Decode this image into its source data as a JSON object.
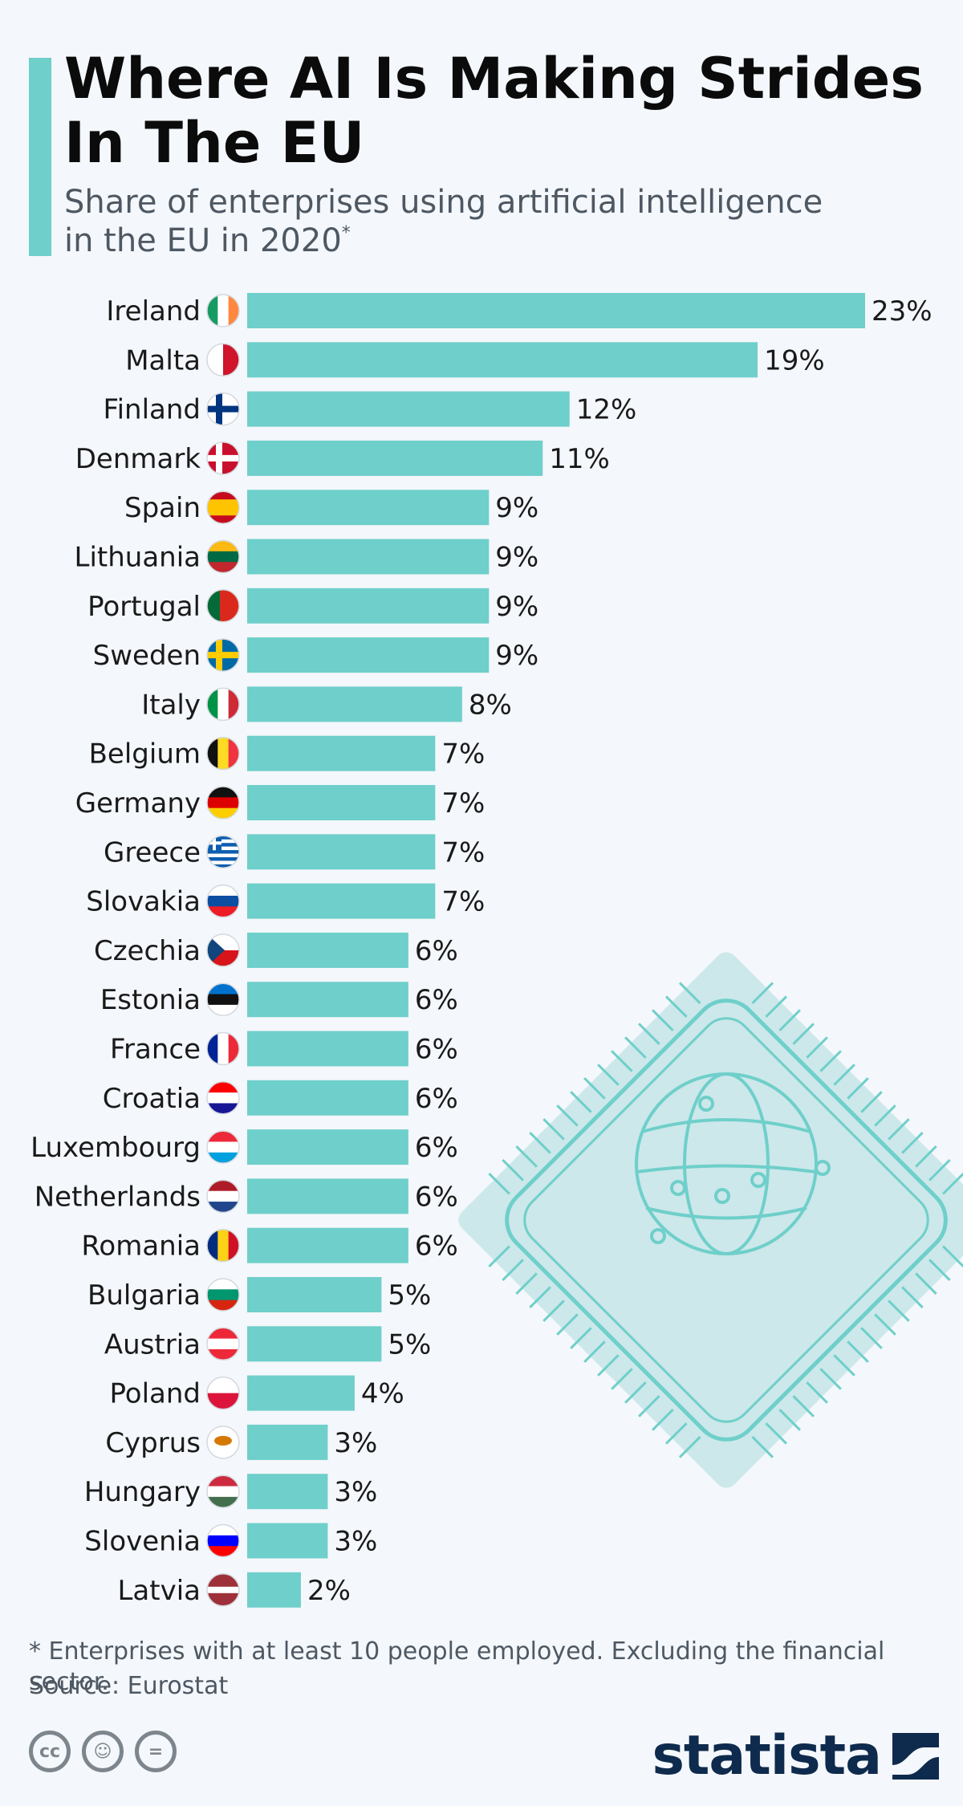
{
  "header": {
    "title": "Where AI Is Making Strides In The EU",
    "subtitle": "Share of enterprises using artificial intelligence\nin the EU in 2020",
    "subtitle_marker": "*"
  },
  "chart_data": {
    "type": "bar",
    "orientation": "horizontal",
    "title": "Where AI Is Making Strides In The EU",
    "subtitle": "Share of enterprises using artificial intelligence in the EU in 2020*",
    "value_suffix": "%",
    "xlim": [
      0,
      23
    ],
    "grid": false,
    "bar_color": "#6fcfca",
    "categories": [
      "Ireland",
      "Malta",
      "Finland",
      "Denmark",
      "Spain",
      "Lithuania",
      "Portugal",
      "Sweden",
      "Italy",
      "Belgium",
      "Germany",
      "Greece",
      "Slovakia",
      "Czechia",
      "Estonia",
      "France",
      "Croatia",
      "Luxembourg",
      "Netherlands",
      "Romania",
      "Bulgaria",
      "Austria",
      "Poland",
      "Cyprus",
      "Hungary",
      "Slovenia",
      "Latvia"
    ],
    "values": [
      23,
      19,
      12,
      11,
      9,
      9,
      9,
      9,
      8,
      7,
      7,
      7,
      7,
      6,
      6,
      6,
      6,
      6,
      6,
      6,
      5,
      5,
      4,
      3,
      3,
      3,
      2
    ],
    "flags": [
      {
        "type": "v",
        "colors": [
          "#169b62",
          "#ffffff",
          "#ff883e"
        ]
      },
      {
        "type": "v",
        "colors": [
          "#ffffff",
          "#cf142b"
        ]
      },
      {
        "type": "nordic",
        "colors": [
          "#ffffff",
          "#003580"
        ]
      },
      {
        "type": "nordic",
        "colors": [
          "#c8102e",
          "#ffffff"
        ]
      },
      {
        "type": "h3",
        "colors": [
          "#c60b1e",
          "#ffc400",
          "#c60b1e"
        ],
        "weights": [
          1,
          2,
          1
        ]
      },
      {
        "type": "h3",
        "colors": [
          "#fdb913",
          "#006a44",
          "#c1272d"
        ]
      },
      {
        "type": "v",
        "colors": [
          "#046a38",
          "#da291c"
        ],
        "weights": [
          2,
          3
        ]
      },
      {
        "type": "nordic",
        "colors": [
          "#006aa7",
          "#fecc00"
        ]
      },
      {
        "type": "v",
        "colors": [
          "#009246",
          "#ffffff",
          "#ce2b37"
        ]
      },
      {
        "type": "v",
        "colors": [
          "#111111",
          "#fdda24",
          "#ef3340"
        ]
      },
      {
        "type": "h3",
        "colors": [
          "#111111",
          "#dd0000",
          "#ffce00"
        ]
      },
      {
        "type": "stripes",
        "colors": [
          "#0d5eaf",
          "#ffffff"
        ]
      },
      {
        "type": "h3",
        "colors": [
          "#ffffff",
          "#0b4ea2",
          "#ee1c25"
        ]
      },
      {
        "type": "czech",
        "colors": [
          "#ffffff",
          "#d7141a",
          "#11457e"
        ]
      },
      {
        "type": "h3",
        "colors": [
          "#0072ce",
          "#111111",
          "#ffffff"
        ]
      },
      {
        "type": "v",
        "colors": [
          "#002395",
          "#ffffff",
          "#ed2939"
        ]
      },
      {
        "type": "h3",
        "colors": [
          "#ff0000",
          "#ffffff",
          "#171796"
        ]
      },
      {
        "type": "h3",
        "colors": [
          "#ed2939",
          "#ffffff",
          "#00a1de"
        ]
      },
      {
        "type": "h3",
        "colors": [
          "#ae1c28",
          "#ffffff",
          "#21468b"
        ]
      },
      {
        "type": "v",
        "colors": [
          "#002b7f",
          "#fcd116",
          "#ce1126"
        ]
      },
      {
        "type": "h3",
        "colors": [
          "#ffffff",
          "#00966e",
          "#d62612"
        ]
      },
      {
        "type": "h3",
        "colors": [
          "#ed2939",
          "#ffffff",
          "#ed2939"
        ]
      },
      {
        "type": "h3",
        "colors": [
          "#ffffff",
          "#dc143c"
        ],
        "weights": [
          1,
          1
        ]
      },
      {
        "type": "h3",
        "colors": [
          "#ffffff",
          "#ffffff"
        ],
        "weights": [
          1,
          1
        ],
        "emblem": "#d57800"
      },
      {
        "type": "h3",
        "colors": [
          "#cd2a3e",
          "#ffffff",
          "#436f4d"
        ]
      },
      {
        "type": "h3",
        "colors": [
          "#ffffff",
          "#0000ff",
          "#ff0000"
        ]
      },
      {
        "type": "h3",
        "colors": [
          "#9e3039",
          "#ffffff",
          "#9e3039"
        ],
        "weights": [
          2,
          1,
          2
        ]
      }
    ]
  },
  "footer": {
    "footnote": "* Enterprises with at least 10 people employed. Excluding the financial sector.",
    "source": "Source: Eurostat",
    "license_icons": [
      {
        "icon": "creative-commons-icon",
        "glyph": "cc"
      },
      {
        "icon": "attribution-icon",
        "glyph": "☺"
      },
      {
        "icon": "no-derivatives-icon",
        "glyph": "="
      }
    ],
    "logo_text": "statista"
  }
}
